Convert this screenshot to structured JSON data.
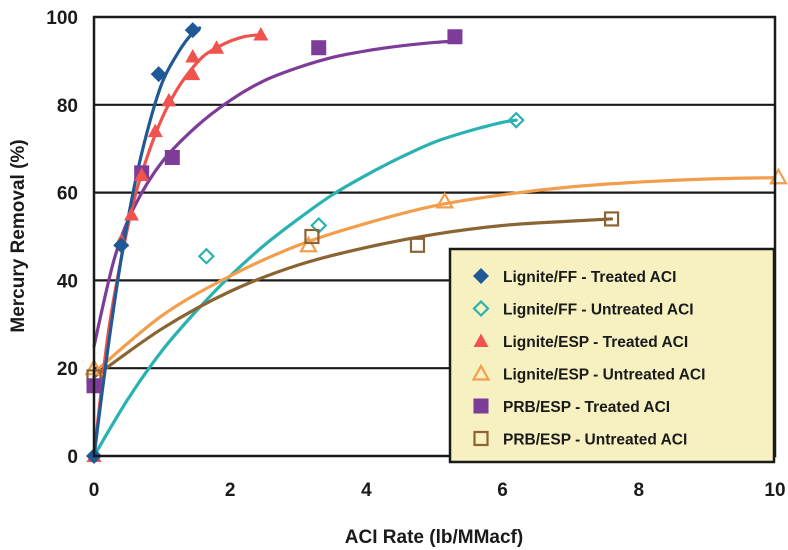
{
  "chart_data": {
    "type": "scatter",
    "xlabel": "ACI Rate (lb/MMacf)",
    "ylabel": "Mercury Removal (%)",
    "xlim": [
      0,
      10
    ],
    "ylim": [
      0,
      100
    ],
    "x_ticks": [
      "0",
      "2",
      "4",
      "6",
      "8",
      "10"
    ],
    "y_ticks": [
      "0",
      "20",
      "40",
      "60",
      "80",
      "100"
    ],
    "grid": "horizontal",
    "legend_position": "bottom-right",
    "legend_background": "#f7f0c0",
    "series": [
      {
        "name": "Lignite/FF - Treated ACI",
        "marker": "diamond-filled",
        "color": "#1f5a96",
        "points": [
          [
            0,
            0
          ],
          [
            0.4,
            48
          ],
          [
            0.95,
            87
          ],
          [
            1.45,
            97
          ]
        ],
        "trend": [
          [
            0,
            0
          ],
          [
            0.2,
            24
          ],
          [
            0.4,
            45
          ],
          [
            0.6,
            62
          ],
          [
            0.8,
            75
          ],
          [
            1.0,
            85
          ],
          [
            1.2,
            91
          ],
          [
            1.4,
            95.5
          ],
          [
            1.55,
            97.5
          ]
        ]
      },
      {
        "name": "Lignite/FF - Untreated ACI",
        "marker": "diamond-open",
        "color": "#2ab2b2",
        "points": [
          [
            1.65,
            45.5
          ],
          [
            3.3,
            52.5
          ],
          [
            6.2,
            76.5
          ]
        ],
        "trend": [
          [
            0,
            0
          ],
          [
            0.5,
            13
          ],
          [
            1,
            24
          ],
          [
            1.5,
            33
          ],
          [
            2,
            41
          ],
          [
            2.5,
            48
          ],
          [
            3,
            54
          ],
          [
            3.5,
            59.5
          ],
          [
            4,
            64
          ],
          [
            4.5,
            68
          ],
          [
            5,
            71.5
          ],
          [
            5.5,
            74
          ],
          [
            6,
            76
          ],
          [
            6.2,
            76.5
          ]
        ]
      },
      {
        "name": "Lignite/ESP - Treated ACI",
        "marker": "triangle-filled",
        "color": "#f0524e",
        "points": [
          [
            0.0,
            0
          ],
          [
            0.4,
            49
          ],
          [
            0.55,
            55
          ],
          [
            0.7,
            64
          ],
          [
            0.9,
            74
          ],
          [
            1.1,
            81
          ],
          [
            1.45,
            87
          ],
          [
            1.45,
            91
          ],
          [
            1.8,
            93
          ],
          [
            2.45,
            96
          ]
        ],
        "trend": [
          [
            0,
            0
          ],
          [
            0.2,
            27
          ],
          [
            0.4,
            45
          ],
          [
            0.6,
            59
          ],
          [
            0.8,
            69
          ],
          [
            1.0,
            77
          ],
          [
            1.2,
            83
          ],
          [
            1.4,
            87.5
          ],
          [
            1.6,
            91
          ],
          [
            1.8,
            93
          ],
          [
            2.0,
            94.5
          ],
          [
            2.2,
            95.5
          ],
          [
            2.45,
            96
          ]
        ]
      },
      {
        "name": "Lignite/ESP - Untreated ACI",
        "marker": "triangle-open",
        "color": "#f29e4c",
        "points": [
          [
            0,
            20
          ],
          [
            3.15,
            48
          ],
          [
            5.15,
            58
          ],
          [
            10.05,
            63.5
          ]
        ],
        "trend": [
          [
            0,
            19
          ],
          [
            1,
            32
          ],
          [
            2,
            41
          ],
          [
            3,
            48
          ],
          [
            4,
            53
          ],
          [
            5,
            57
          ],
          [
            6,
            59.5
          ],
          [
            7,
            61.3
          ],
          [
            8,
            62.4
          ],
          [
            9,
            63.1
          ],
          [
            10,
            63.4
          ]
        ]
      },
      {
        "name": "PRB/ESP - Treated ACI",
        "marker": "square-filled",
        "color": "#7d3c98",
        "points": [
          [
            0,
            16
          ],
          [
            0.7,
            64.5
          ],
          [
            1.15,
            68
          ],
          [
            3.3,
            93
          ],
          [
            5.3,
            95.5
          ]
        ],
        "trend": [
          [
            0,
            25
          ],
          [
            0.3,
            45
          ],
          [
            0.6,
            57
          ],
          [
            1.0,
            67
          ],
          [
            1.5,
            75
          ],
          [
            2,
            81
          ],
          [
            2.5,
            85.5
          ],
          [
            3,
            88.5
          ],
          [
            3.5,
            90.8
          ],
          [
            4,
            92.3
          ],
          [
            4.5,
            93.4
          ],
          [
            5,
            94.2
          ],
          [
            5.3,
            94.5
          ]
        ]
      },
      {
        "name": "PRB/ESP - Untreated ACI",
        "marker": "square-open",
        "color": "#8a6533",
        "points": [
          [
            0,
            18
          ],
          [
            3.2,
            50
          ],
          [
            4.75,
            48
          ],
          [
            7.6,
            54
          ]
        ],
        "trend": [
          [
            0,
            18
          ],
          [
            1,
            29
          ],
          [
            2,
            37.5
          ],
          [
            3,
            43.5
          ],
          [
            4,
            47.5
          ],
          [
            5,
            50.5
          ],
          [
            6,
            52.5
          ],
          [
            7,
            53.5
          ],
          [
            7.6,
            54
          ]
        ]
      }
    ]
  }
}
